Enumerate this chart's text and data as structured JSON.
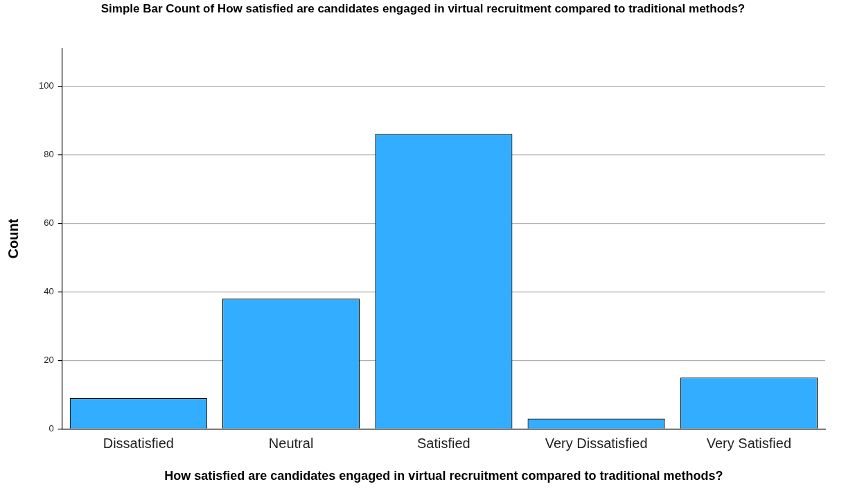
{
  "chart_data": {
    "type": "bar",
    "title": "Simple Bar Count of How satisfied are candidates engaged in virtual recruitment compared to traditional methods?",
    "xlabel": "How satisfied are candidates engaged in virtual recruitment compared to traditional methods?",
    "ylabel": "Count",
    "categories": [
      "Dissatisfied",
      "Neutral",
      "Satisfied",
      "Very Dissatisfied",
      "Very Satisfied"
    ],
    "values": [
      9,
      38,
      86,
      3,
      15
    ],
    "color": "#33adff",
    "ylim": [
      0,
      111
    ],
    "yticks": [
      0,
      20,
      40,
      60,
      80,
      100
    ],
    "grid": "y",
    "legend": false
  }
}
